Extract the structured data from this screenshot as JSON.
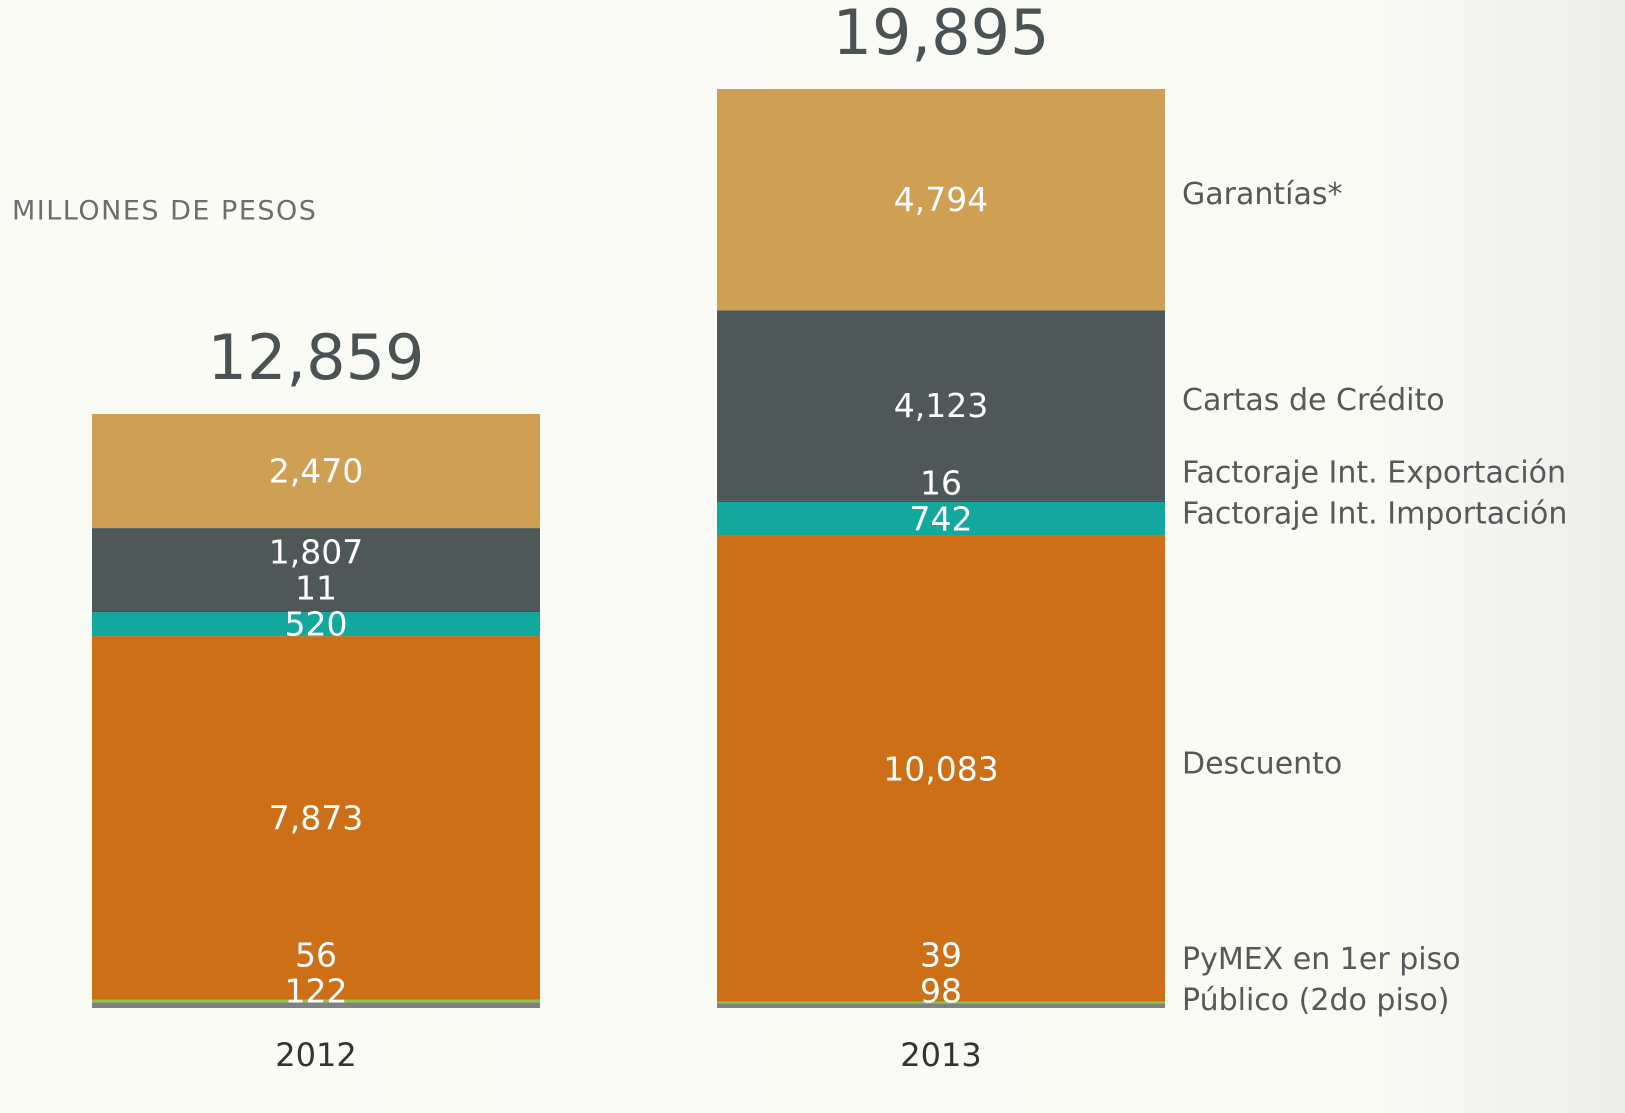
{
  "chart_data": {
    "type": "stacked-bar",
    "subtitle": "MILLONES DE PESOS",
    "categories": [
      "2012",
      "2013"
    ],
    "totals": [
      12859,
      19895
    ],
    "total_labels": [
      "12,859",
      "19,895"
    ],
    "series": [
      {
        "name": "Público (2do piso)",
        "color": "#808184",
        "values": [
          122,
          98
        ],
        "value_labels": [
          "122",
          "98"
        ]
      },
      {
        "name": "PyMEX en 1er piso",
        "color": "#8dc63f",
        "values": [
          56,
          39
        ],
        "value_labels": [
          "56",
          "39"
        ]
      },
      {
        "name": "Descuento",
        "color": "#cc6f17",
        "values": [
          7873,
          10083
        ],
        "value_labels": [
          "7,873",
          "10,083"
        ]
      },
      {
        "name": "Factoraje Int. Importación",
        "color": "#13a89e",
        "values": [
          520,
          742
        ],
        "value_labels": [
          "520",
          "742"
        ]
      },
      {
        "name": "Factoraje Int. Exportación",
        "color": "#231f20",
        "values": [
          11,
          16
        ],
        "value_labels": [
          "11",
          "16"
        ]
      },
      {
        "name": "Cartas de Crédito",
        "color": "#4f5859",
        "values": [
          1807,
          4123
        ],
        "value_labels": [
          "1,807",
          "4,123"
        ]
      },
      {
        "name": "Garantías*",
        "color": "#cf9f53",
        "values": [
          2470,
          4794
        ],
        "value_labels": [
          "2,470",
          "4,794"
        ]
      }
    ]
  }
}
